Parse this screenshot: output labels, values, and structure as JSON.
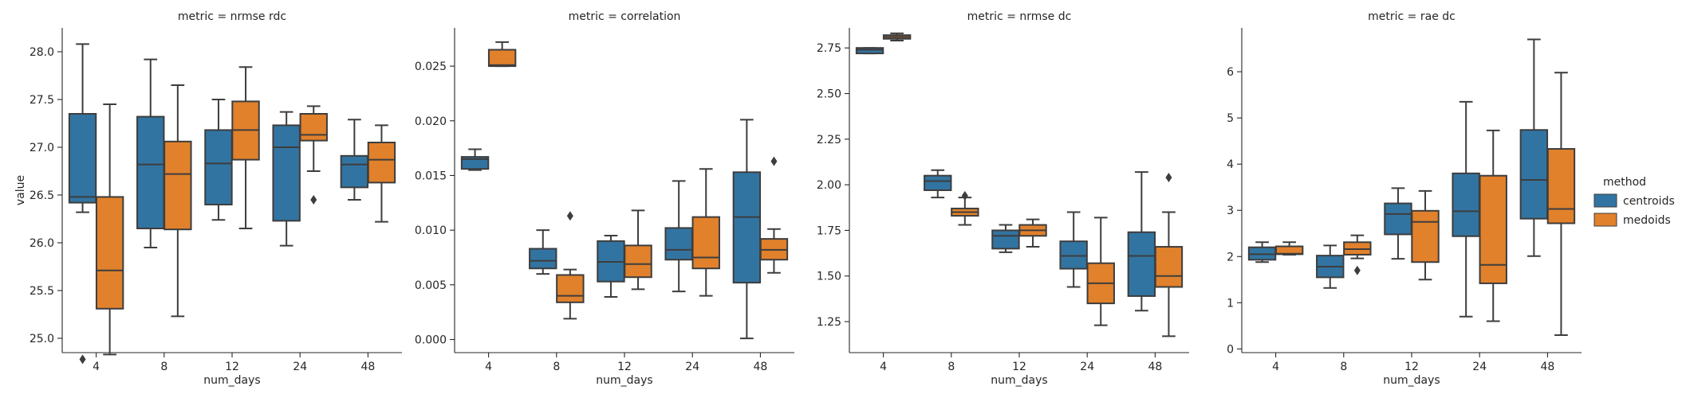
{
  "colors": {
    "centroids": "#3274a1",
    "medoids": "#e1812c",
    "line": "#3d3d3d",
    "text": "#262626"
  },
  "legend": {
    "title": "method",
    "entries": [
      "centroids",
      "medoids"
    ]
  },
  "chart_data": [
    {
      "type": "box",
      "title": "metric = nrmse rdc",
      "xlabel": "num_days",
      "ylabel": "value",
      "categories": [
        "4",
        "8",
        "12",
        "24",
        "48"
      ],
      "ylim": [
        24.85,
        28.25
      ],
      "yticks": [
        25.0,
        25.5,
        26.0,
        26.5,
        27.0,
        27.5,
        28.0
      ],
      "ytick_labels": [
        "25.0",
        "25.5",
        "26.0",
        "26.5",
        "27.0",
        "27.5",
        "28.0"
      ],
      "series": [
        {
          "name": "centroids",
          "boxes": [
            {
              "whislo": 26.32,
              "q1": 26.42,
              "med": 26.48,
              "q3": 27.35,
              "whishi": 28.08,
              "fliers": [
                24.78
              ]
            },
            {
              "whislo": 25.95,
              "q1": 26.15,
              "med": 26.82,
              "q3": 27.32,
              "whishi": 27.92,
              "fliers": []
            },
            {
              "whislo": 26.24,
              "q1": 26.4,
              "med": 26.83,
              "q3": 27.18,
              "whishi": 27.5,
              "fliers": []
            },
            {
              "whislo": 25.97,
              "q1": 26.23,
              "med": 27.0,
              "q3": 27.23,
              "whishi": 27.37,
              "fliers": []
            },
            {
              "whislo": 26.45,
              "q1": 26.58,
              "med": 26.82,
              "q3": 26.91,
              "whishi": 27.29,
              "fliers": []
            }
          ]
        },
        {
          "name": "medoids",
          "boxes": [
            {
              "whislo": 24.83,
              "q1": 25.31,
              "med": 25.71,
              "q3": 26.48,
              "whishi": 27.45,
              "fliers": []
            },
            {
              "whislo": 25.23,
              "q1": 26.14,
              "med": 26.72,
              "q3": 27.06,
              "whishi": 27.65,
              "fliers": []
            },
            {
              "whislo": 26.15,
              "q1": 26.87,
              "med": 27.18,
              "q3": 27.48,
              "whishi": 27.84,
              "fliers": []
            },
            {
              "whislo": 26.75,
              "q1": 27.07,
              "med": 27.13,
              "q3": 27.35,
              "whishi": 27.43,
              "fliers": [
                26.45
              ]
            },
            {
              "whislo": 26.22,
              "q1": 26.63,
              "med": 26.87,
              "q3": 27.05,
              "whishi": 27.23,
              "fliers": []
            }
          ]
        }
      ]
    },
    {
      "type": "box",
      "title": "metric = correlation",
      "xlabel": "num_days",
      "ylabel": "",
      "categories": [
        "4",
        "8",
        "12",
        "24",
        "48"
      ],
      "ylim": [
        -0.0012,
        0.0285
      ],
      "yticks": [
        0.0,
        0.005,
        0.01,
        0.015,
        0.02,
        0.025
      ],
      "ytick_labels": [
        "0.000",
        "0.005",
        "0.010",
        "0.015",
        "0.020",
        "0.025"
      ],
      "series": [
        {
          "name": "centroids",
          "boxes": [
            {
              "whislo": 0.0155,
              "q1": 0.0156,
              "med": 0.0165,
              "q3": 0.0167,
              "whishi": 0.0174,
              "fliers": []
            },
            {
              "whislo": 0.006,
              "q1": 0.0065,
              "med": 0.0072,
              "q3": 0.0083,
              "whishi": 0.01,
              "fliers": []
            },
            {
              "whislo": 0.0039,
              "q1": 0.0053,
              "med": 0.0071,
              "q3": 0.009,
              "whishi": 0.0095,
              "fliers": []
            },
            {
              "whislo": 0.0044,
              "q1": 0.0073,
              "med": 0.0082,
              "q3": 0.0102,
              "whishi": 0.0145,
              "fliers": []
            },
            {
              "whislo": 0.0001,
              "q1": 0.0052,
              "med": 0.0112,
              "q3": 0.0153,
              "whishi": 0.0201,
              "fliers": []
            }
          ]
        },
        {
          "name": "medoids",
          "boxes": [
            {
              "whislo": 0.025,
              "q1": 0.025,
              "med": 0.0251,
              "q3": 0.0265,
              "whishi": 0.0272,
              "fliers": []
            },
            {
              "whislo": 0.0019,
              "q1": 0.0034,
              "med": 0.004,
              "q3": 0.0059,
              "whishi": 0.0064,
              "fliers": [
                0.0113
              ]
            },
            {
              "whislo": 0.0046,
              "q1": 0.0057,
              "med": 0.0069,
              "q3": 0.0086,
              "whishi": 0.0118,
              "fliers": []
            },
            {
              "whislo": 0.004,
              "q1": 0.0065,
              "med": 0.0075,
              "q3": 0.0112,
              "whishi": 0.0156,
              "fliers": []
            },
            {
              "whislo": 0.0061,
              "q1": 0.0073,
              "med": 0.0082,
              "q3": 0.0092,
              "whishi": 0.0101,
              "fliers": [
                0.0163
              ]
            }
          ]
        }
      ]
    },
    {
      "type": "box",
      "title": "metric = nrmse dc",
      "xlabel": "num_days",
      "ylabel": "",
      "categories": [
        "4",
        "8",
        "12",
        "24",
        "48"
      ],
      "ylim": [
        1.08,
        2.86
      ],
      "yticks": [
        1.25,
        1.5,
        1.75,
        2.0,
        2.25,
        2.5,
        2.75
      ],
      "ytick_labels": [
        "1.25",
        "1.50",
        "1.75",
        "2.00",
        "2.25",
        "2.50",
        "2.75"
      ],
      "series": [
        {
          "name": "centroids",
          "boxes": [
            {
              "whislo": 2.72,
              "q1": 2.72,
              "med": 2.74,
              "q3": 2.75,
              "whishi": 2.75,
              "fliers": []
            },
            {
              "whislo": 1.93,
              "q1": 1.97,
              "med": 2.02,
              "q3": 2.05,
              "whishi": 2.08,
              "fliers": []
            },
            {
              "whislo": 1.63,
              "q1": 1.65,
              "med": 1.72,
              "q3": 1.75,
              "whishi": 1.78,
              "fliers": []
            },
            {
              "whislo": 1.44,
              "q1": 1.54,
              "med": 1.61,
              "q3": 1.69,
              "whishi": 1.85,
              "fliers": []
            },
            {
              "whislo": 1.31,
              "q1": 1.39,
              "med": 1.61,
              "q3": 1.74,
              "whishi": 2.07,
              "fliers": []
            }
          ]
        },
        {
          "name": "medoids",
          "boxes": [
            {
              "whislo": 2.79,
              "q1": 2.8,
              "med": 2.81,
              "q3": 2.82,
              "whishi": 2.83,
              "fliers": []
            },
            {
              "whislo": 1.78,
              "q1": 1.83,
              "med": 1.85,
              "q3": 1.87,
              "whishi": 1.93,
              "fliers": [
                1.94
              ]
            },
            {
              "whislo": 1.66,
              "q1": 1.72,
              "med": 1.75,
              "q3": 1.78,
              "whishi": 1.81,
              "fliers": []
            },
            {
              "whislo": 1.23,
              "q1": 1.35,
              "med": 1.46,
              "q3": 1.57,
              "whishi": 1.82,
              "fliers": []
            },
            {
              "whislo": 1.17,
              "q1": 1.44,
              "med": 1.5,
              "q3": 1.66,
              "whishi": 1.85,
              "fliers": [
                2.04
              ]
            }
          ]
        }
      ]
    },
    {
      "type": "box",
      "title": "metric = rae dc",
      "xlabel": "num_days",
      "ylabel": "",
      "categories": [
        "4",
        "8",
        "12",
        "24",
        "48"
      ],
      "ylim": [
        -0.08,
        6.95
      ],
      "yticks": [
        0,
        1,
        2,
        3,
        4,
        5,
        6
      ],
      "ytick_labels": [
        "0",
        "1",
        "2",
        "3",
        "4",
        "5",
        "6"
      ],
      "series": [
        {
          "name": "centroids",
          "boxes": [
            {
              "whislo": 1.88,
              "q1": 1.93,
              "med": 2.05,
              "q3": 2.2,
              "whishi": 2.31,
              "fliers": []
            },
            {
              "whislo": 1.32,
              "q1": 1.55,
              "med": 1.78,
              "q3": 2.02,
              "whishi": 2.24,
              "fliers": []
            },
            {
              "whislo": 1.95,
              "q1": 2.48,
              "med": 2.92,
              "q3": 3.15,
              "whishi": 3.48,
              "fliers": []
            },
            {
              "whislo": 0.7,
              "q1": 2.44,
              "med": 2.98,
              "q3": 3.8,
              "whishi": 5.35,
              "fliers": []
            },
            {
              "whislo": 2.01,
              "q1": 2.82,
              "med": 3.66,
              "q3": 4.74,
              "whishi": 6.7,
              "fliers": []
            }
          ]
        },
        {
          "name": "medoids",
          "boxes": [
            {
              "whislo": 2.04,
              "q1": 2.05,
              "med": 2.06,
              "q3": 2.22,
              "whishi": 2.31,
              "fliers": []
            },
            {
              "whislo": 1.96,
              "q1": 2.04,
              "med": 2.16,
              "q3": 2.31,
              "whishi": 2.46,
              "fliers": [
                1.7
              ]
            },
            {
              "whislo": 1.5,
              "q1": 1.88,
              "med": 2.75,
              "q3": 2.99,
              "whishi": 3.42,
              "fliers": []
            },
            {
              "whislo": 0.6,
              "q1": 1.42,
              "med": 1.82,
              "q3": 3.75,
              "whishi": 4.73,
              "fliers": []
            },
            {
              "whislo": 0.3,
              "q1": 2.72,
              "med": 3.03,
              "q3": 4.33,
              "whishi": 5.98,
              "fliers": []
            }
          ]
        }
      ]
    }
  ]
}
